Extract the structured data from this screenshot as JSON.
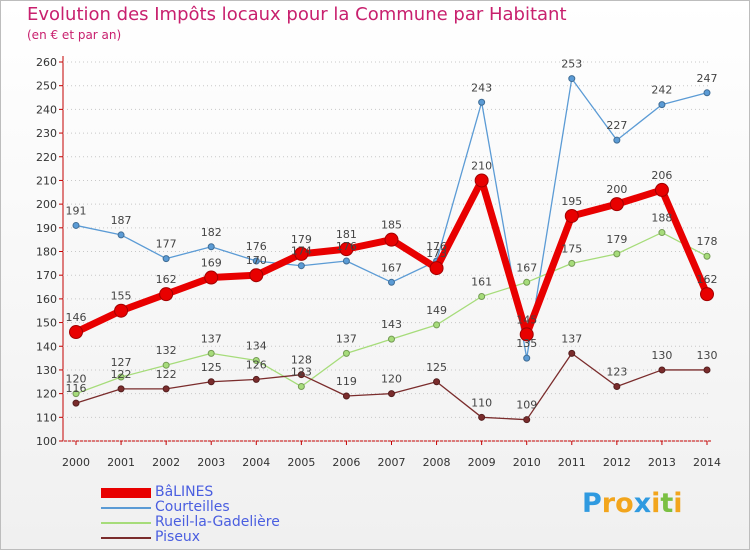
{
  "header": {
    "title": "Evolution des Impôts locaux pour la Commune par Habitant",
    "subtitle": "(en € et par an)"
  },
  "logo": {
    "text": "Proxiti",
    "letters": [
      {
        "char": "P",
        "color": "#2f9ae0"
      },
      {
        "char": "r",
        "color": "#f2a51c"
      },
      {
        "char": "o",
        "color": "#f2a51c"
      },
      {
        "char": "x",
        "color": "#2f9ae0"
      },
      {
        "char": "i",
        "color": "#f2a51c"
      },
      {
        "char": "t",
        "color": "#7bc043"
      },
      {
        "char": "i",
        "color": "#f2a51c"
      }
    ]
  },
  "chart_data": {
    "type": "line",
    "title": "Evolution des Impôts locaux pour la Commune par Habitant",
    "subtitle": "(en € et par an)",
    "x": [
      2000,
      2001,
      2002,
      2003,
      2004,
      2005,
      2006,
      2007,
      2008,
      2009,
      2010,
      2011,
      2012,
      2013,
      2014
    ],
    "ylim": [
      100,
      260
    ],
    "yticks": [
      100,
      110,
      120,
      130,
      140,
      150,
      160,
      170,
      180,
      190,
      200,
      210,
      220,
      230,
      240,
      250,
      260
    ],
    "grid": "horizontal dotted",
    "legend_position": "bottom-left",
    "series": [
      {
        "name": "BâLINES",
        "color": "#e80000",
        "emphasis": true,
        "values": [
          146,
          155,
          162,
          169,
          170,
          179,
          181,
          185,
          173,
          210,
          145,
          195,
          200,
          206,
          162
        ],
        "labels": [
          "146",
          "155",
          "162",
          "169",
          "170",
          "179",
          "181",
          "185",
          "173",
          "210",
          "145",
          "195",
          "200",
          "206",
          "162"
        ]
      },
      {
        "name": "Courteilles",
        "color": "#5b9bd5",
        "values": [
          191,
          187,
          177,
          182,
          176,
          174,
          176,
          167,
          176,
          243,
          135,
          253,
          227,
          242,
          247
        ],
        "labels": [
          "191",
          "187",
          "177",
          "182",
          "176",
          "174",
          "176",
          "167",
          "176",
          "243",
          "135",
          "253",
          "227",
          "242",
          "247"
        ]
      },
      {
        "name": "Rueil-la-Gadelière",
        "color": "#a6dc7a",
        "values": [
          120,
          127,
          132,
          137,
          134,
          123,
          137,
          143,
          149,
          161,
          167,
          175,
          179,
          188,
          178
        ],
        "labels": [
          "120",
          "127",
          "132",
          "137",
          "134",
          "123",
          "137",
          "143",
          "149",
          "161",
          "167",
          "175",
          "179",
          "188",
          "178"
        ]
      },
      {
        "name": "Piseux",
        "color": "#7a2c2c",
        "values": [
          116,
          122,
          122,
          125,
          126,
          128,
          119,
          120,
          125,
          110,
          109,
          137,
          123,
          130,
          130
        ],
        "labels": [
          "116",
          "122",
          "122",
          "125",
          "126",
          "128",
          "119",
          "120",
          "125",
          "110",
          "109",
          "137",
          "123",
          "130",
          "130"
        ]
      }
    ]
  }
}
